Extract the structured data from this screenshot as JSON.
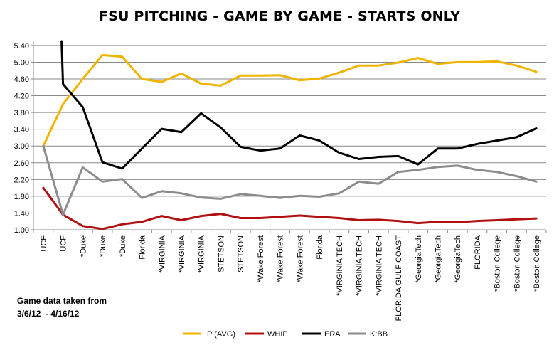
{
  "chart_data": {
    "type": "line",
    "title": "FSU PITCHING - GAME BY GAME - STARTS ONLY",
    "categories": [
      "UCF",
      "UCF",
      "*Duke",
      "*Duke",
      "*Duke",
      "Florida",
      "*VIRGINIA",
      "*VIRGINIA",
      "*VIRGINIA",
      "STETSON",
      "STETSON",
      "*Wake Forest",
      "*Wake Forest",
      "*Wake Forest",
      "Florida",
      "*VIRGINIA TECH",
      "*VIRGINIA TECH",
      "*VIRGINIA TECH",
      "FLORIDA GULF COAST",
      "*GeorgiaTech",
      "*GeorgiaTech",
      "*GeorgiaTech",
      "FLORIDA",
      "*Boston College",
      "*Boston College",
      "*Boston College"
    ],
    "ylim": [
      1.0,
      5.5
    ],
    "yticks": [
      "1.00",
      "1.40",
      "1.80",
      "2.20",
      "2.60",
      "3.00",
      "3.40",
      "3.80",
      "4.20",
      "4.60",
      "5.00",
      "5.40"
    ],
    "grid": true,
    "legend": "bottom",
    "series": [
      {
        "name": "IP (AVG)",
        "color": "#f0b400",
        "values": [
          3.0,
          4.0,
          4.6,
          5.17,
          5.13,
          4.6,
          4.53,
          4.73,
          4.49,
          4.44,
          4.68,
          4.68,
          4.69,
          4.57,
          4.61,
          4.75,
          4.92,
          4.92,
          4.99,
          5.1,
          4.96,
          5.0,
          5.0,
          5.02,
          4.92,
          4.77
        ]
      },
      {
        "name": "WHIP",
        "color": "#b01010",
        "values": [
          2.0,
          1.36,
          1.09,
          1.02,
          1.13,
          1.19,
          1.33,
          1.23,
          1.33,
          1.38,
          1.28,
          1.28,
          1.31,
          1.34,
          1.31,
          1.28,
          1.23,
          1.24,
          1.21,
          1.16,
          1.19,
          1.18,
          1.21,
          1.23,
          1.25,
          1.27
        ]
      },
      {
        "name": "ERA",
        "color": "#000000",
        "values": [
          null,
          4.48,
          3.93,
          2.61,
          2.46,
          2.94,
          3.41,
          3.33,
          3.78,
          3.44,
          2.98,
          2.89,
          2.94,
          3.25,
          3.13,
          2.84,
          2.69,
          2.74,
          2.76,
          2.56,
          2.94,
          2.94,
          3.05,
          3.13,
          3.21,
          3.42
        ]
      },
      {
        "name": "K:BB",
        "color": "#8c8c8c",
        "values": [
          3.0,
          1.36,
          2.49,
          2.15,
          2.21,
          1.76,
          1.92,
          1.87,
          1.77,
          1.74,
          1.85,
          1.81,
          1.76,
          1.81,
          1.79,
          1.87,
          2.15,
          2.1,
          2.38,
          2.43,
          2.5,
          2.53,
          2.43,
          2.38,
          2.28,
          2.15
        ]
      }
    ],
    "era_first_point_note": "line enters from above the plot top at first UCF point"
  },
  "note": {
    "line1": "Game data taken from",
    "line2": "3/6/12  - 4/16/12"
  }
}
